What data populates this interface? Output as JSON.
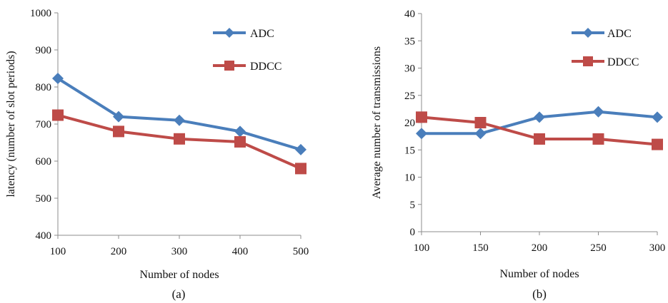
{
  "chart_data": [
    {
      "panel": "(a)",
      "type": "line",
      "xlabel": "Number of nodes",
      "ylabel": "latency (number of slot periods)",
      "x": [
        100,
        200,
        300,
        400,
        500
      ],
      "ylim": [
        400,
        1000
      ],
      "yticks": [
        400,
        500,
        600,
        700,
        800,
        900,
        1000
      ],
      "grid": false,
      "legend": "top-right",
      "series": [
        {
          "name": "ADC",
          "values": [
            823,
            720,
            710,
            680,
            631
          ],
          "color": "#4a7ebb",
          "marker": "diamond"
        },
        {
          "name": "DDCC",
          "values": [
            724,
            680,
            660,
            652,
            580
          ],
          "color": "#be4b48",
          "marker": "square"
        }
      ]
    },
    {
      "panel": "(b)",
      "type": "line",
      "xlabel": "Number of nodes",
      "ylabel": "Average number of transmissions",
      "x": [
        100,
        150,
        200,
        250,
        300
      ],
      "ylim": [
        0,
        40
      ],
      "yticks": [
        0,
        5,
        10,
        15,
        20,
        25,
        30,
        35,
        40
      ],
      "grid": false,
      "legend": "top-right",
      "series": [
        {
          "name": "ADC",
          "values": [
            18,
            18,
            21,
            22,
            21
          ],
          "color": "#4a7ebb",
          "marker": "diamond"
        },
        {
          "name": "DDCC",
          "values": [
            21,
            20,
            17,
            17,
            16
          ],
          "color": "#be4b48",
          "marker": "square"
        }
      ]
    }
  ]
}
